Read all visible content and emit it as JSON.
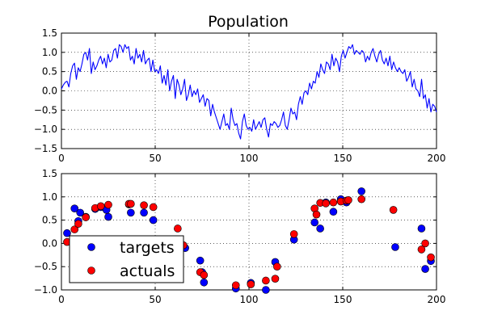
{
  "colors": {
    "background": "#ffffff",
    "line": "#0000ff",
    "targets": "#0000ff",
    "actuals": "#ff0000",
    "grid": "#000000",
    "axis": "#000000"
  },
  "chart_data": [
    {
      "type": "line",
      "title": "Population",
      "xlabel": "",
      "ylabel": "",
      "xlim": [
        0,
        200
      ],
      "ylim": [
        -1.5,
        1.5
      ],
      "xticks": [
        "0",
        "50",
        "100",
        "150",
        "200"
      ],
      "yticks": [
        "−1.5",
        "−1.0",
        "−0.5",
        "0.0",
        "0.5",
        "1.0",
        "1.5"
      ],
      "grid": true,
      "series": [
        {
          "values": [
            0.05,
            0.15,
            0.22,
            0.25,
            0.1,
            0.45,
            0.65,
            0.72,
            0.3,
            0.6,
            0.5,
            0.7,
            0.95,
            1.0,
            0.8,
            1.1,
            0.45,
            0.75,
            0.55,
            0.65,
            0.8,
            0.9,
            0.7,
            0.85,
            0.6,
            0.95,
            0.75,
            0.8,
            1.05,
            1.1,
            0.85,
            1.2,
            1.15,
            1.0,
            1.2,
            1.1,
            1.15,
            0.8,
            0.9,
            0.7,
            1.1,
            0.85,
            0.95,
            0.75,
            1.05,
            0.7,
            0.8,
            0.85,
            0.5,
            0.8,
            0.5,
            0.55,
            0.45,
            0.65,
            0.2,
            0.4,
            0.15,
            0.55,
            0.0,
            0.25,
            0.4,
            -0.2,
            0.3,
            0.15,
            -0.1,
            0.05,
            0.3,
            -0.25,
            -0.1,
            0.15,
            -0.15,
            0.0,
            -0.1,
            0.05,
            -0.3,
            -0.2,
            -0.1,
            -0.4,
            -0.2,
            -0.25,
            -0.65,
            -0.35,
            -0.55,
            -0.7,
            -0.85,
            -1.0,
            -0.8,
            -0.6,
            -0.9,
            -0.85,
            -1.0,
            -0.45,
            -0.75,
            -0.9,
            -0.85,
            -1.1,
            -1.25,
            -0.8,
            -0.6,
            -0.9,
            -1.0,
            -0.95,
            -1.05,
            -0.75,
            -1.0,
            -0.9,
            -0.8,
            -0.95,
            -0.75,
            -0.7,
            -1.0,
            -1.2,
            -0.85,
            -0.9,
            -0.8,
            -0.85,
            -0.95,
            -0.9,
            -0.75,
            -0.55,
            -0.9,
            -1.0,
            -0.75,
            -0.45,
            -0.6,
            -0.55,
            -0.75,
            -0.35,
            -0.15,
            -0.35,
            -0.05,
            0.0,
            -0.1,
            0.2,
            0.05,
            0.25,
            0.2,
            0.5,
            0.35,
            0.7,
            0.55,
            0.45,
            0.75,
            0.7,
            0.55,
            0.95,
            0.65,
            0.85,
            0.75,
            0.5,
            0.9,
            1.05,
            0.85,
            1.0,
            1.15,
            1.1,
            1.2,
            0.95,
            1.05,
            1.0,
            0.95,
            1.05,
            1.0,
            0.75,
            0.9,
            0.8,
            1.0,
            1.1,
            0.9,
            0.75,
            0.95,
            1.05,
            0.8,
            0.7,
            0.85,
            0.65,
            0.9,
            0.55,
            0.75,
            0.6,
            0.5,
            0.6,
            0.5,
            0.45,
            0.55,
            0.25,
            0.35,
            0.5,
            0.1,
            0.3,
            0.05,
            0.0,
            -0.15,
            0.3,
            -0.2,
            -0.1,
            -0.45,
            -0.2,
            -0.55,
            -0.35,
            -0.4,
            -0.55
          ]
        }
      ]
    },
    {
      "type": "scatter",
      "title": "",
      "xlabel": "",
      "ylabel": "",
      "xlim": [
        0,
        200
      ],
      "ylim": [
        -1.0,
        1.5
      ],
      "xticks": [
        "0",
        "50",
        "100",
        "150",
        "200"
      ],
      "yticks": [
        "−1.0",
        "−0.5",
        "0.0",
        "0.5",
        "1.0",
        "1.5"
      ],
      "grid": true,
      "legend": {
        "position": "lower-left",
        "entries": [
          "targets",
          "actuals"
        ]
      },
      "series": [
        {
          "name": "targets",
          "points": [
            [
              3,
              0.22
            ],
            [
              7,
              0.75
            ],
            [
              9,
              0.48
            ],
            [
              10,
              0.66
            ],
            [
              13,
              0.57
            ],
            [
              18,
              0.74
            ],
            [
              21,
              0.78
            ],
            [
              24,
              0.72
            ],
            [
              25,
              0.57
            ],
            [
              36,
              0.84
            ],
            [
              37,
              0.66
            ],
            [
              44,
              0.66
            ],
            [
              49,
              0.5
            ],
            [
              66,
              -0.1
            ],
            [
              74,
              -0.37
            ],
            [
              76,
              -0.84
            ],
            [
              75,
              -0.62
            ],
            [
              93,
              -0.97
            ],
            [
              101,
              -0.85
            ],
            [
              109,
              -1.0
            ],
            [
              114,
              -0.4
            ],
            [
              124,
              0.08
            ],
            [
              135,
              0.45
            ],
            [
              138,
              0.32
            ],
            [
              141,
              0.88
            ],
            [
              145,
              0.68
            ],
            [
              149,
              0.95
            ],
            [
              152,
              0.88
            ],
            [
              160,
              1.12
            ],
            [
              178,
              -0.08
            ],
            [
              192,
              0.32
            ],
            [
              194,
              -0.55
            ],
            [
              197,
              -0.38
            ]
          ]
        },
        {
          "name": "actuals",
          "points": [
            [
              3,
              0.03
            ],
            [
              7,
              0.3
            ],
            [
              9,
              0.42
            ],
            [
              13,
              0.56
            ],
            [
              18,
              0.76
            ],
            [
              21,
              0.8
            ],
            [
              25,
              0.83
            ],
            [
              36,
              0.85
            ],
            [
              37,
              0.85
            ],
            [
              44,
              0.82
            ],
            [
              49,
              0.78
            ],
            [
              62,
              0.32
            ],
            [
              65,
              -0.04
            ],
            [
              74,
              -0.62
            ],
            [
              76,
              -0.68
            ],
            [
              93,
              -0.9
            ],
            [
              101,
              -0.88
            ],
            [
              109,
              -0.8
            ],
            [
              114,
              -0.76
            ],
            [
              115,
              -0.5
            ],
            [
              124,
              0.2
            ],
            [
              135,
              0.75
            ],
            [
              136,
              0.62
            ],
            [
              138,
              0.87
            ],
            [
              141,
              0.86
            ],
            [
              145,
              0.88
            ],
            [
              149,
              0.9
            ],
            [
              152,
              0.92
            ],
            [
              153,
              0.93
            ],
            [
              160,
              0.95
            ],
            [
              177,
              0.72
            ],
            [
              192,
              -0.13
            ],
            [
              194,
              0.0
            ],
            [
              197,
              -0.3
            ]
          ]
        }
      ]
    }
  ]
}
